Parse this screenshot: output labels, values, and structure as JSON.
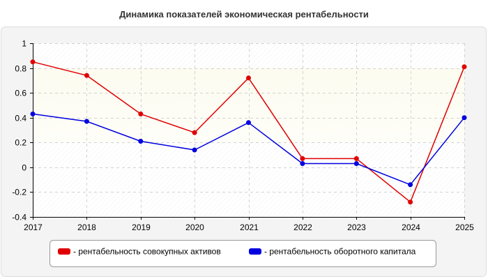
{
  "chart_data": {
    "type": "line",
    "title": "Динамика показателей экономическая рентабельности",
    "xlabel": "",
    "ylabel": "",
    "categories": [
      "2017",
      "2018",
      "2019",
      "2020",
      "2021",
      "2022",
      "2023",
      "2024",
      "2025"
    ],
    "ylim": [
      -0.4,
      1
    ],
    "yticks": [
      "-0.4",
      "-0.2",
      "0",
      "0.2",
      "0.4",
      "0.6",
      "0.8",
      "1"
    ],
    "grid": true,
    "legend_position": "bottom",
    "series": [
      {
        "name": "- рентабельность совокупных активов",
        "color": "#e00000",
        "values": [
          0.85,
          0.74,
          0.43,
          0.28,
          0.72,
          0.07,
          0.07,
          -0.28,
          0.81
        ]
      },
      {
        "name": "- рентабельность оборотного капитала",
        "color": "#0000e0",
        "values": [
          0.43,
          0.37,
          0.21,
          0.14,
          0.36,
          0.03,
          0.03,
          -0.14,
          0.4
        ]
      }
    ]
  }
}
